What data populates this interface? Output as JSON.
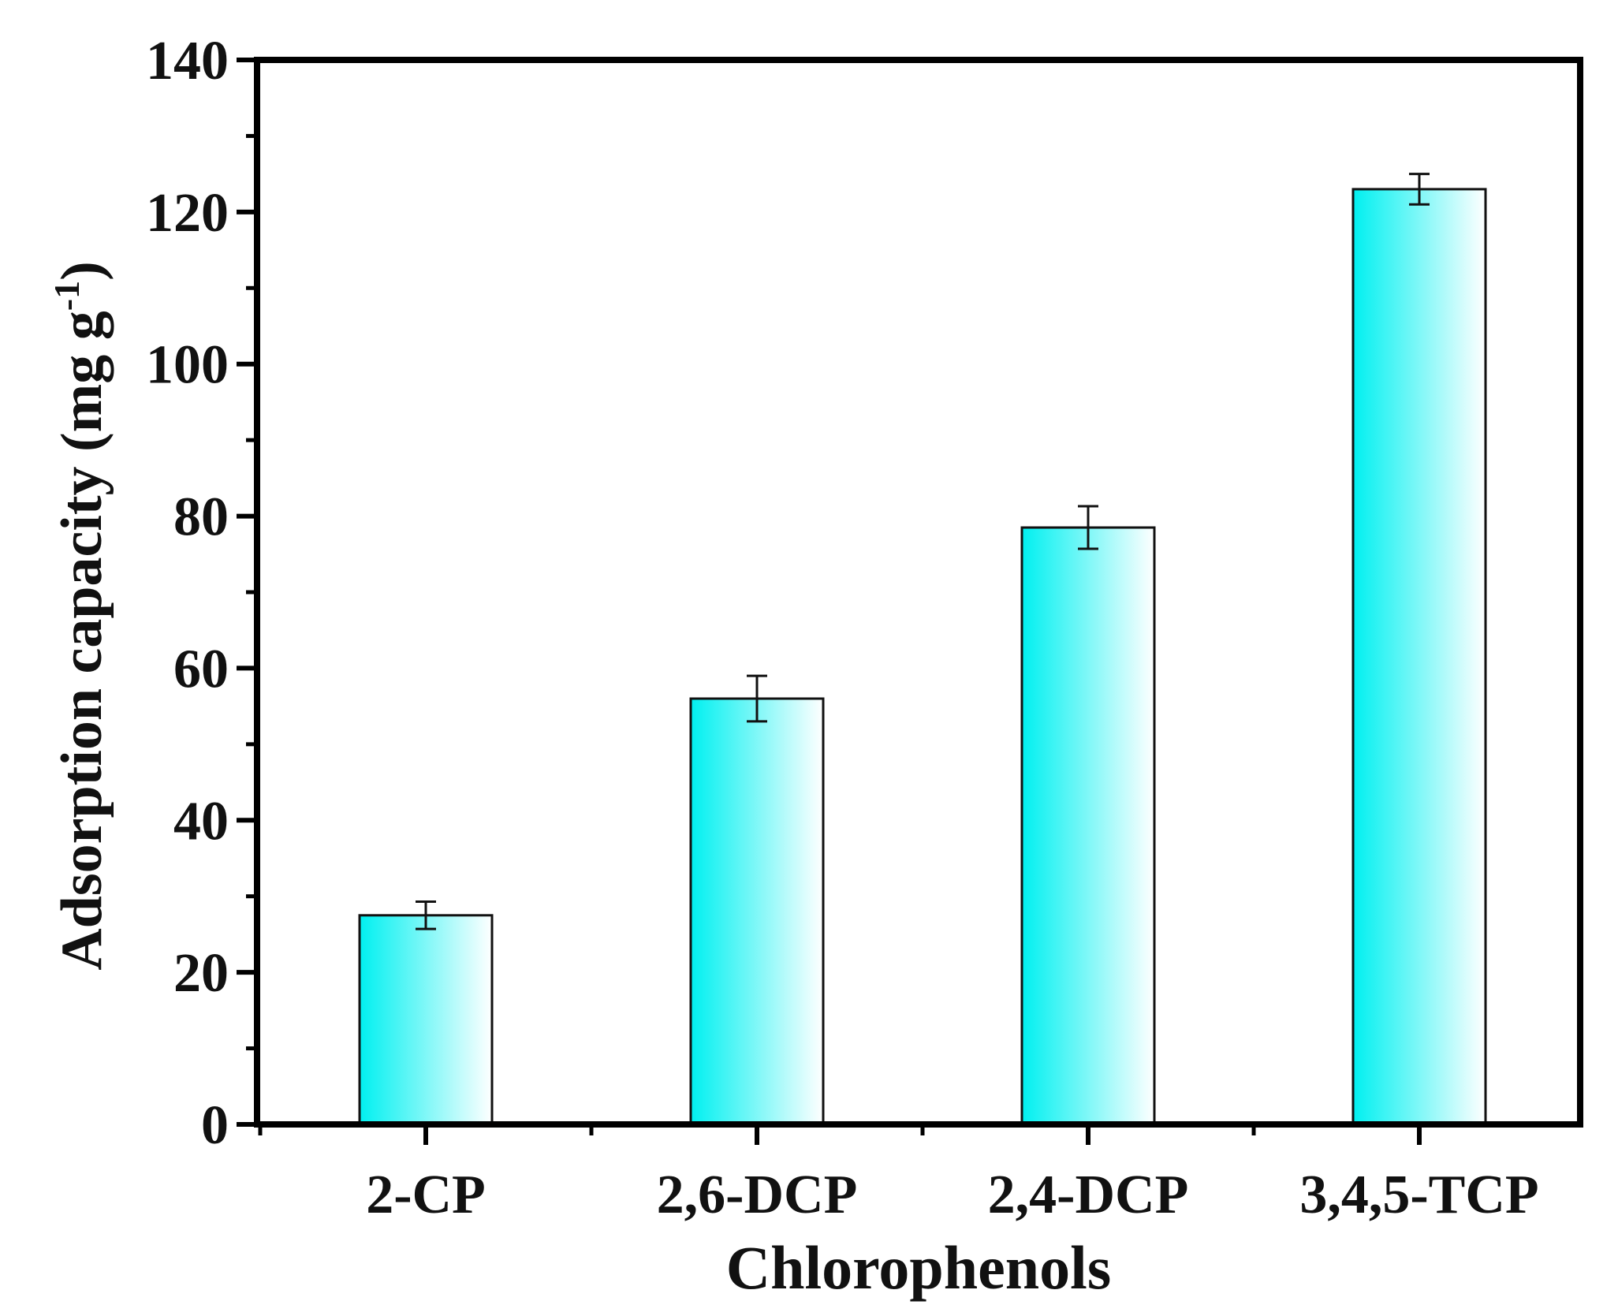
{
  "chart_data": {
    "type": "bar",
    "xlabel": "Chlorophenols",
    "ylabel_main": "Adsorption capacity (mg g",
    "ylabel_sup": "-1",
    "ylabel_close": ")",
    "categories": [
      "2-CP",
      "2,6-DCP",
      "2,4-DCP",
      "3,4,5-TCP"
    ],
    "values": [
      27.5,
      56,
      78.5,
      123
    ],
    "errors": [
      1.8,
      3,
      2.8,
      2
    ],
    "ylim": [
      0,
      140
    ],
    "yticks": [
      "0",
      "20",
      "40",
      "60",
      "80",
      "100",
      "120",
      "140"
    ],
    "grid": false,
    "legend": "none",
    "colors": {
      "bar_fill_start": "#00f0f0",
      "bar_fill_end": "#ffffff",
      "bar_stroke": "#111111",
      "axis": "#000000"
    }
  }
}
